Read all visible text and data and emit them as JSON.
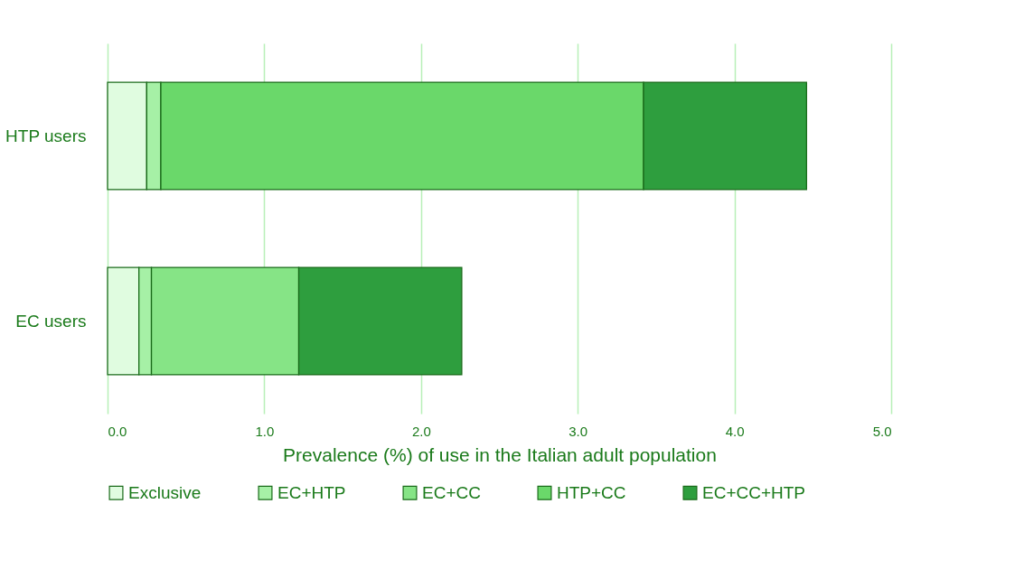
{
  "chart_data": {
    "type": "bar",
    "orientation": "horizontal",
    "stacked": true,
    "xlabel": "Prevalence (%) of use in the Italian adult population",
    "categories": [
      "HTP users",
      "EC users"
    ],
    "series": [
      {
        "name": "Exclusive",
        "color": "#e0fce0",
        "values": [
          0.25,
          0.2
        ]
      },
      {
        "name": "EC+HTP",
        "color": "#a6f0a6",
        "values": [
          0.09,
          0.08
        ]
      },
      {
        "name": "EC+CC",
        "color": "#86e486",
        "values": [
          null,
          0.94
        ]
      },
      {
        "name": "HTP+CC",
        "color": "#6ad86a",
        "values": [
          3.08,
          null
        ]
      },
      {
        "name": "EC+CC+HTP",
        "color": "#2e9e3e",
        "values": [
          1.04,
          1.04
        ]
      }
    ],
    "xlim": [
      0,
      5
    ],
    "xticks": [
      {
        "value": 0,
        "label": "0.0"
      },
      {
        "value": 1,
        "label": "1.0"
      },
      {
        "value": 2,
        "label": "2.0"
      },
      {
        "value": 3,
        "label": "3.0"
      },
      {
        "value": 4,
        "label": "4.0"
      },
      {
        "value": 5,
        "label": "5.0"
      }
    ],
    "grid": "x",
    "legend": "bottom"
  }
}
